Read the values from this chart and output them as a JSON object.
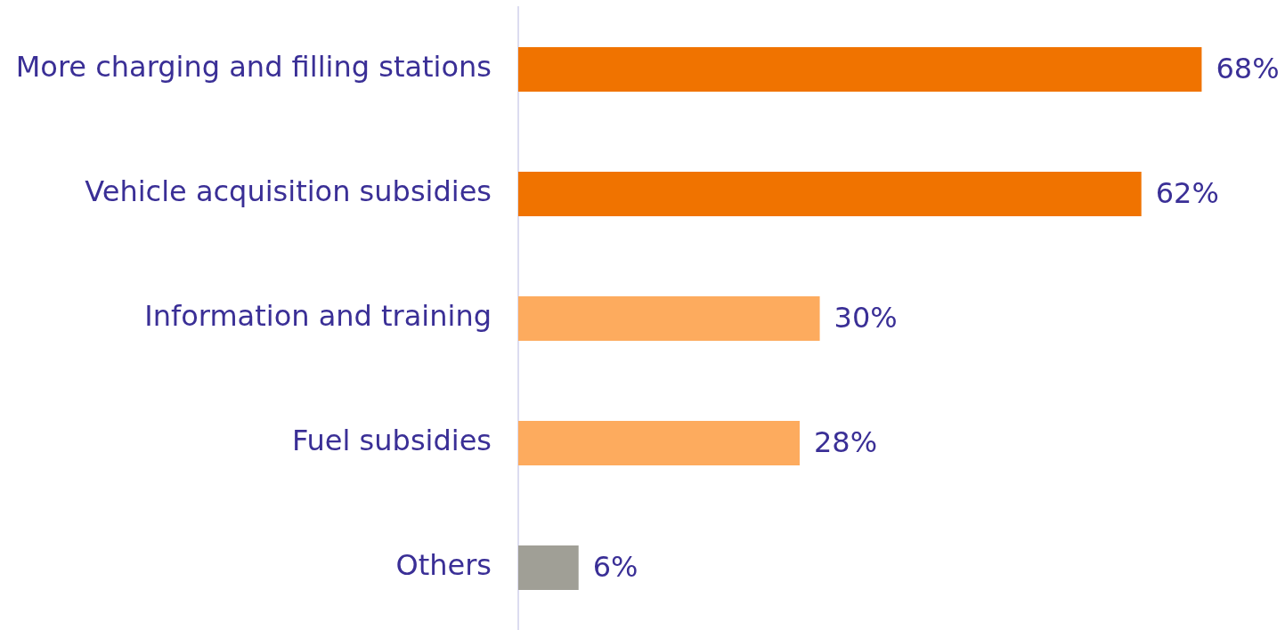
{
  "chart_data": {
    "type": "bar",
    "orientation": "horizontal",
    "categories": [
      "More charging and filling stations",
      "Vehicle acquisition subsidies",
      "Information and training",
      "Fuel subsidies",
      "Others"
    ],
    "values": [
      68,
      62,
      30,
      28,
      6
    ],
    "colors": [
      "#f07300",
      "#f07300",
      "#fdab5e",
      "#fdab5e",
      "#a09f96"
    ],
    "value_labels": [
      "68%",
      "62%",
      "30%",
      "28%",
      "6%"
    ],
    "grid": false,
    "tick_labels": "y"
  }
}
